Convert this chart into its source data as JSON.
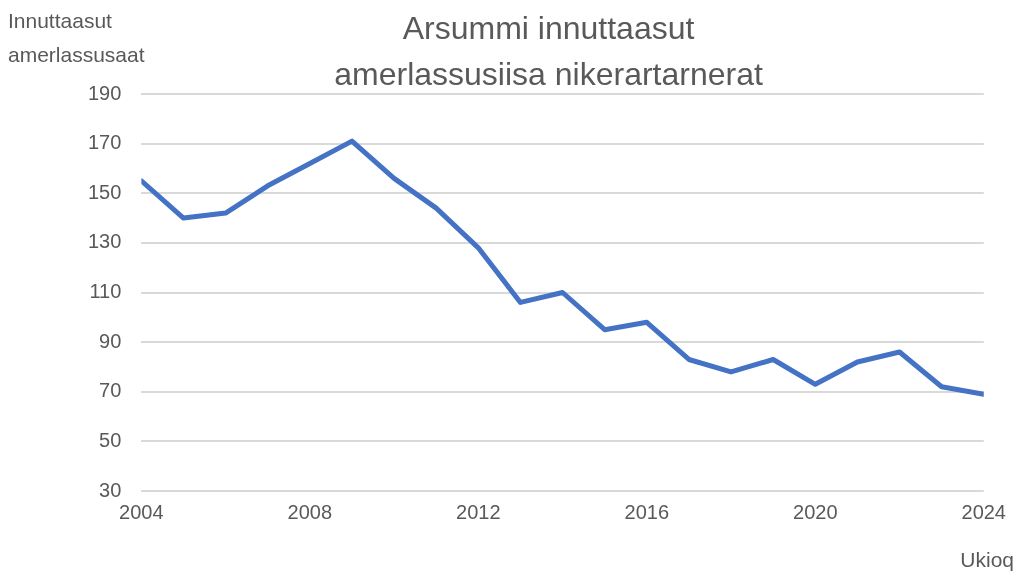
{
  "chart_data": {
    "type": "line",
    "title": "Arsummi innuttaasut amerlassusiisa nikerartarnerat",
    "xlabel": "Ukioq",
    "ylabel": "Innuttaasut amerlassusaat",
    "x": [
      2004,
      2005,
      2006,
      2007,
      2008,
      2009,
      2010,
      2011,
      2012,
      2013,
      2014,
      2015,
      2016,
      2017,
      2018,
      2019,
      2020,
      2021,
      2022,
      2023,
      2024
    ],
    "series": [
      {
        "color": "#4472c4",
        "values": [
          155,
          140,
          142,
          153,
          162,
          171,
          156,
          144,
          128,
          106,
          110,
          95,
          98,
          83,
          78,
          83,
          73,
          82,
          86,
          72,
          69
        ]
      }
    ],
    "xlim": [
      2004,
      2024
    ],
    "xticks": [
      2004,
      2008,
      2012,
      2016,
      2020,
      2024
    ],
    "ylim": [
      30,
      190
    ],
    "yticks": [
      30,
      50,
      70,
      90,
      110,
      130,
      150,
      170,
      190
    ],
    "grid": "y",
    "legend": false,
    "marker": "none",
    "line_style": "solid"
  }
}
